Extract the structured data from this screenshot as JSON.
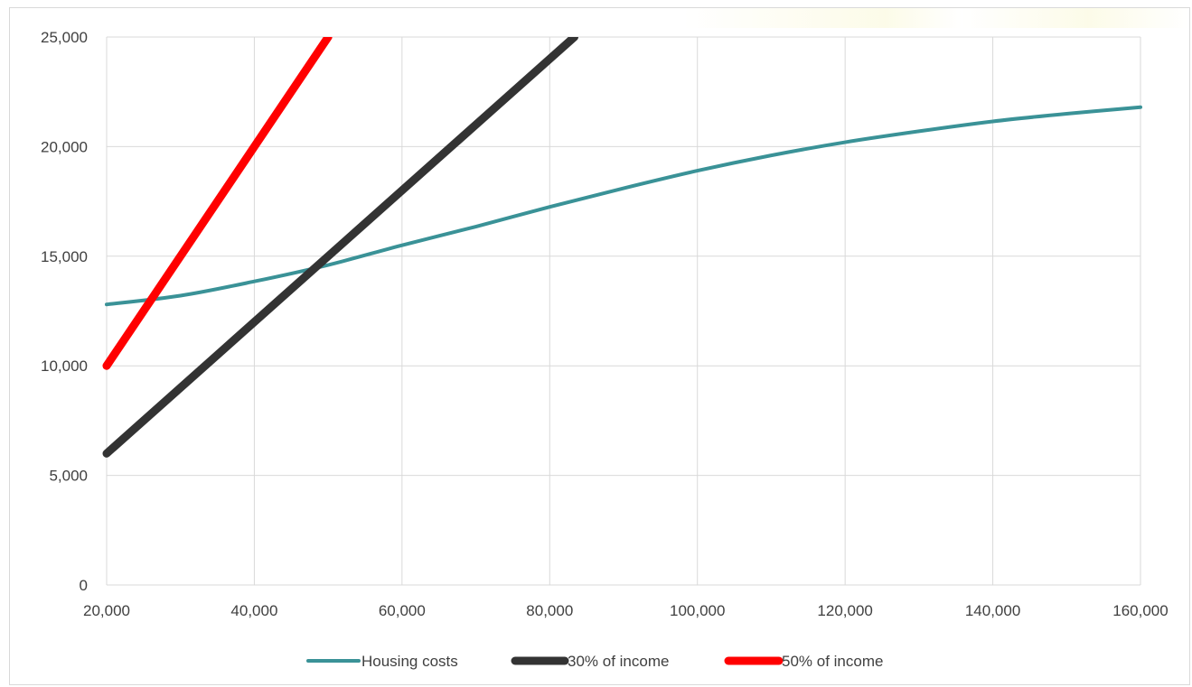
{
  "chart_data": {
    "type": "line",
    "title": "",
    "xlabel": "",
    "ylabel": "",
    "xlim": [
      20000,
      160000
    ],
    "ylim": [
      0,
      25000
    ],
    "x_ticks": [
      "20,000",
      "40,000",
      "60,000",
      "80,000",
      "100,000",
      "120,000",
      "140,000",
      "160,000"
    ],
    "y_ticks": [
      "0",
      "5,000",
      "10,000",
      "15,000",
      "20,000",
      "25,000"
    ],
    "x_tick_values": [
      20000,
      40000,
      60000,
      80000,
      100000,
      120000,
      140000,
      160000
    ],
    "y_tick_values": [
      0,
      5000,
      10000,
      15000,
      20000,
      25000
    ],
    "grid": true,
    "legend_position": "bottom",
    "series": [
      {
        "name": "Housing costs",
        "color": "#3a9297",
        "x": [
          20000,
          30000,
          40000,
          50000,
          60000,
          70000,
          80000,
          90000,
          100000,
          110000,
          120000,
          130000,
          140000,
          150000,
          160000
        ],
        "y": [
          12800,
          13200,
          13850,
          14600,
          15500,
          16350,
          17250,
          18100,
          18900,
          19600,
          20200,
          20700,
          21150,
          21500,
          21800
        ]
      },
      {
        "name": "30% of income",
        "color": "#333333",
        "x": [
          20000,
          83333
        ],
        "y": [
          6000,
          25000
        ]
      },
      {
        "name": "50% of income",
        "color": "#ff0000",
        "x": [
          20000,
          50000
        ],
        "y": [
          10000,
          25000
        ]
      }
    ]
  }
}
